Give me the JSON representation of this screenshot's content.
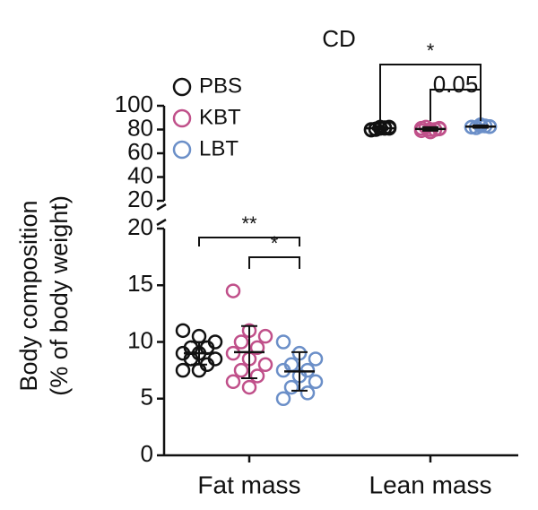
{
  "chart_data": {
    "type": "dot",
    "title": "CD",
    "ylabel": [
      "Body composition",
      "(% of body weight)"
    ],
    "categories": [
      "Fat mass",
      "Lean mass"
    ],
    "ylim_lower": [
      0,
      20
    ],
    "yticks_lower": [
      0,
      5,
      10,
      15,
      20
    ],
    "ylim_upper": [
      20,
      100
    ],
    "yticks_upper": [
      20,
      40,
      60,
      80,
      100
    ],
    "series": [
      {
        "name": "PBS",
        "color": "#111111",
        "values": [
          [
            11,
            10.5,
            10,
            9.5,
            9.5,
            9,
            9,
            8.5,
            8.5,
            8,
            7.5,
            7.5
          ],
          [
            80,
            81,
            82,
            80.5,
            81.5,
            79.5,
            82,
            81,
            80,
            81
          ]
        ],
        "mean": [
          9,
          81
        ],
        "sd": [
          1,
          1
        ]
      },
      {
        "name": "KBT",
        "color": "#c0508a",
        "values": [
          [
            14.5,
            11,
            10.5,
            10,
            9.5,
            9,
            8.5,
            8,
            7.5,
            7,
            6.5,
            6
          ],
          [
            79,
            80,
            81,
            82,
            80,
            81,
            78,
            80.5
          ]
        ],
        "mean": [
          9.1,
          80.5
        ],
        "sd": [
          2.3,
          1.5
        ]
      },
      {
        "name": "LBT",
        "color": "#6b8fc8",
        "values": [
          [
            10,
            9,
            8.5,
            8,
            7.5,
            7.5,
            7,
            6.5,
            6,
            5.5,
            5
          ],
          [
            82,
            83,
            82.5,
            81.5,
            83,
            82,
            84,
            82.5
          ]
        ],
        "mean": [
          7.4,
          82.5
        ],
        "sd": [
          1.7,
          1
        ]
      }
    ],
    "annotations": [
      {
        "text": "**",
        "category": 0,
        "from": 0,
        "to": 2
      },
      {
        "text": "*",
        "category": 0,
        "from": 1,
        "to": 2
      },
      {
        "text": "*",
        "category": 1,
        "from": 0,
        "to": 2
      },
      {
        "text": "0.05",
        "category": 1,
        "from": 1,
        "to": 2
      }
    ]
  }
}
